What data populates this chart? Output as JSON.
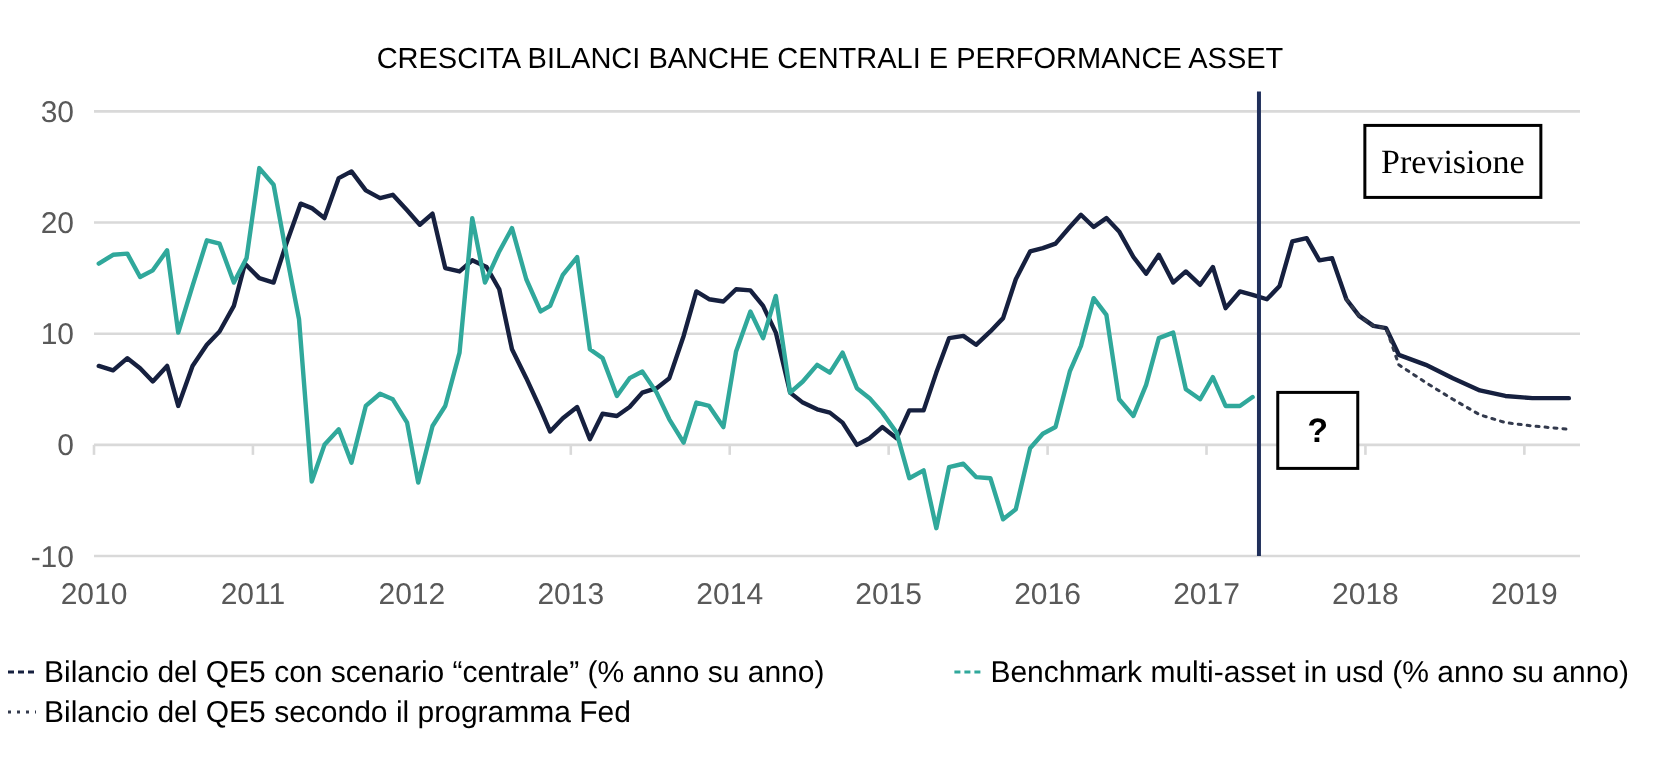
{
  "chart_data": {
    "type": "line",
    "title": "CRESCITA BILANCI BANCHE CENTRALI E PERFORMANCE ASSET",
    "xlim": [
      2010,
      2019.35
    ],
    "xticks": [
      2010,
      2011,
      2012,
      2013,
      2014,
      2015,
      2016,
      2017,
      2018,
      2019
    ],
    "ylim": [
      -10,
      30
    ],
    "yticks": [
      -10,
      0,
      10,
      20,
      30
    ],
    "grid": "y",
    "legend": "bottom",
    "ref_lines": [
      {
        "axis": "x",
        "value": 2017.33,
        "color": "#1f2f5a"
      }
    ],
    "annotations": [
      "Previsione",
      "?"
    ],
    "series": [
      {
        "name": "Bilancio del QE5 con scenario “centrale” (% anno su anno)",
        "color": "#16203f",
        "line_style": "solid",
        "x": [
          2010.03,
          2010.12,
          2010.21,
          2010.29,
          2010.37,
          2010.46,
          2010.53,
          2010.62,
          2010.71,
          2010.79,
          2010.88,
          2010.95,
          2011.04,
          2011.13,
          2011.21,
          2011.3,
          2011.37,
          2011.45,
          2011.54,
          2011.62,
          2011.71,
          2011.8,
          2011.88,
          2011.97,
          2012.05,
          2012.13,
          2012.21,
          2012.3,
          2012.38,
          2012.47,
          2012.55,
          2012.63,
          2012.72,
          2012.81,
          2012.87,
          2012.95,
          2013.04,
          2013.12,
          2013.2,
          2013.29,
          2013.37,
          2013.45,
          2013.54,
          2013.62,
          2013.71,
          2013.79,
          2013.87,
          2013.96,
          2014.04,
          2014.13,
          2014.21,
          2014.29,
          2014.38,
          2014.46,
          2014.55,
          2014.63,
          2014.71,
          2014.8,
          2014.88,
          2014.96,
          2015.05,
          2015.13,
          2015.22,
          2015.3,
          2015.38,
          2015.47,
          2015.55,
          2015.64,
          2015.72,
          2015.8,
          2015.89,
          2015.97,
          2016.05,
          2016.14,
          2016.21,
          2016.29,
          2016.37,
          2016.45,
          2016.54,
          2016.62,
          2016.7,
          2016.79,
          2016.87,
          2016.96,
          2017.04,
          2017.12,
          2017.21,
          2017.29,
          2017.38,
          2017.46,
          2017.54,
          2017.63,
          2017.71,
          2017.79,
          2017.88,
          2017.96,
          2018.05,
          2018.13,
          2018.21,
          2018.38,
          2018.55,
          2018.72,
          2018.88,
          2019.05,
          2019.28
        ],
        "values": [
          7.1,
          6.7,
          7.8,
          6.9,
          5.7,
          7.1,
          3.5,
          7.1,
          9.0,
          10.2,
          12.5,
          16.3,
          15.0,
          14.6,
          18.1,
          21.7,
          21.3,
          20.4,
          24.0,
          24.6,
          22.9,
          22.2,
          22.5,
          21.1,
          19.8,
          20.8,
          15.9,
          15.6,
          16.6,
          16.0,
          14.0,
          8.6,
          6.0,
          3.2,
          1.2,
          2.4,
          3.4,
          0.5,
          2.8,
          2.6,
          3.4,
          4.7,
          5.1,
          6.0,
          9.8,
          13.8,
          13.1,
          12.9,
          14.0,
          13.9,
          12.5,
          10.1,
          4.7,
          3.8,
          3.2,
          2.9,
          2.0,
          0,
          0.6,
          1.6,
          0.6,
          3.1,
          3.1,
          6.5,
          9.6,
          9.8,
          9.0,
          10.2,
          11.4,
          14.9,
          17.4,
          17.7,
          18.1,
          19.6,
          20.7,
          19.6,
          20.4,
          19.2,
          16.9,
          15.4,
          17.1,
          14.6,
          15.6,
          14.4,
          16.0,
          12.3,
          13.8,
          13.5,
          13.1,
          14.3,
          18.3,
          18.6,
          16.6,
          16.8,
          13.1,
          11.6,
          10.7,
          10.5,
          8.1,
          7.2,
          6.0,
          4.9,
          4.4,
          4.2,
          4.2
        ]
      },
      {
        "name": "Benchmark multi-asset in usd (% anno su anno)",
        "color": "#30a89b",
        "line_style": "solid",
        "x": [
          2010.03,
          2010.12,
          2010.21,
          2010.29,
          2010.37,
          2010.46,
          2010.53,
          2010.62,
          2010.71,
          2010.79,
          2010.88,
          2010.96,
          2011.04,
          2011.13,
          2011.21,
          2011.29,
          2011.37,
          2011.45,
          2011.54,
          2011.62,
          2011.71,
          2011.8,
          2011.88,
          2011.97,
          2012.04,
          2012.13,
          2012.21,
          2012.3,
          2012.38,
          2012.46,
          2012.55,
          2012.63,
          2012.72,
          2012.81,
          2012.87,
          2012.95,
          2013.04,
          2013.12,
          2013.2,
          2013.29,
          2013.37,
          2013.45,
          2013.54,
          2013.62,
          2013.71,
          2013.79,
          2013.87,
          2013.96,
          2014.04,
          2014.13,
          2014.21,
          2014.29,
          2014.38,
          2014.46,
          2014.55,
          2014.63,
          2014.71,
          2014.8,
          2014.88,
          2014.96,
          2015.05,
          2015.13,
          2015.22,
          2015.3,
          2015.38,
          2015.47,
          2015.55,
          2015.64,
          2015.72,
          2015.8,
          2015.89,
          2015.97,
          2016.05,
          2016.14,
          2016.21,
          2016.29,
          2016.37,
          2016.45,
          2016.54,
          2016.62,
          2016.7,
          2016.79,
          2016.87,
          2016.96,
          2017.04,
          2017.12,
          2017.21,
          2017.29
        ],
        "values": [
          16.3,
          17.1,
          17.2,
          15.1,
          15.7,
          17.5,
          10.1,
          14.3,
          18.4,
          18.1,
          14.6,
          16.8,
          24.9,
          23.4,
          17.2,
          11.3,
          -3.3,
          0,
          1.4,
          -1.6,
          3.5,
          4.6,
          4.1,
          2.0,
          -3.4,
          1.7,
          3.5,
          8.3,
          20.4,
          14.6,
          17.4,
          19.5,
          14.9,
          12.0,
          12.5,
          15.3,
          16.9,
          8.6,
          7.8,
          4.4,
          6.0,
          6.6,
          4.7,
          2.3,
          0.2,
          3.8,
          3.5,
          1.6,
          8.4,
          12.0,
          9.6,
          13.4,
          4.7,
          5.7,
          7.2,
          6.5,
          8.3,
          5.1,
          4.2,
          2.9,
          1.1,
          -3.0,
          -2.3,
          -7.5,
          -2.0,
          -1.7,
          -2.9,
          -3.0,
          -6.7,
          -5.8,
          -0.3,
          1.0,
          1.6,
          6.6,
          8.9,
          13.2,
          11.7,
          4.1,
          2.6,
          5.4,
          9.6,
          10.1,
          5.0,
          4.1,
          6.1,
          3.5,
          3.5,
          4.3
        ]
      },
      {
        "name": "Bilancio del QE5 secondo il programma Fed",
        "color": "#333a4d",
        "line_style": "dotted",
        "x": [
          2017.88,
          2017.96,
          2018.05,
          2018.13,
          2018.21,
          2018.38,
          2018.55,
          2018.72,
          2018.88,
          2019.05,
          2019.28
        ],
        "values": [
          13.1,
          11.6,
          10.7,
          10.5,
          7.2,
          5.6,
          4.1,
          2.7,
          2.0,
          1.7,
          1.4
        ]
      }
    ]
  }
}
